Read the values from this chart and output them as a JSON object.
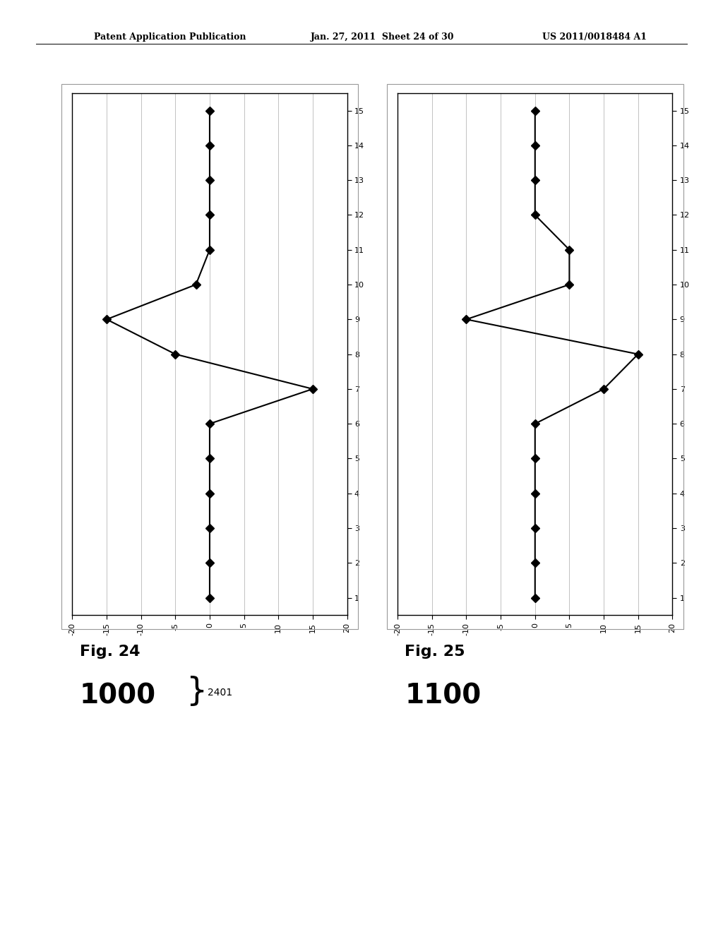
{
  "fig24": {
    "title": "Fig. 24",
    "label": "1000",
    "label2401": "2401",
    "y_vals": [
      1,
      2,
      3,
      4,
      5,
      6,
      7,
      8,
      9,
      10,
      11,
      12,
      13,
      14,
      15
    ],
    "x_vals": [
      0,
      0,
      0,
      0,
      0,
      0,
      15,
      -5,
      -15,
      -2,
      0,
      0,
      0,
      0,
      0
    ]
  },
  "fig25": {
    "title": "Fig. 25",
    "label": "1100",
    "y_vals": [
      1,
      2,
      3,
      4,
      5,
      6,
      7,
      8,
      9,
      10,
      11,
      12,
      13,
      14,
      15
    ],
    "x_vals": [
      0,
      0,
      0,
      0,
      0,
      0,
      10,
      15,
      -10,
      5,
      5,
      0,
      0,
      0,
      0
    ]
  },
  "xlim": [
    -20,
    20
  ],
  "xticks": [
    20,
    15,
    10,
    5,
    0,
    -5,
    -10,
    -15,
    -20
  ],
  "ylim": [
    0.5,
    15.5
  ],
  "header_left": "Patent Application Publication",
  "header_mid": "Jan. 27, 2011  Sheet 24 of 30",
  "header_right": "US 2011/0018484 A1",
  "background_color": "#ffffff",
  "plot_bg": "#ffffff",
  "line_color": "#000000",
  "marker_color": "#000000",
  "grid_color": "#aaaaaa"
}
